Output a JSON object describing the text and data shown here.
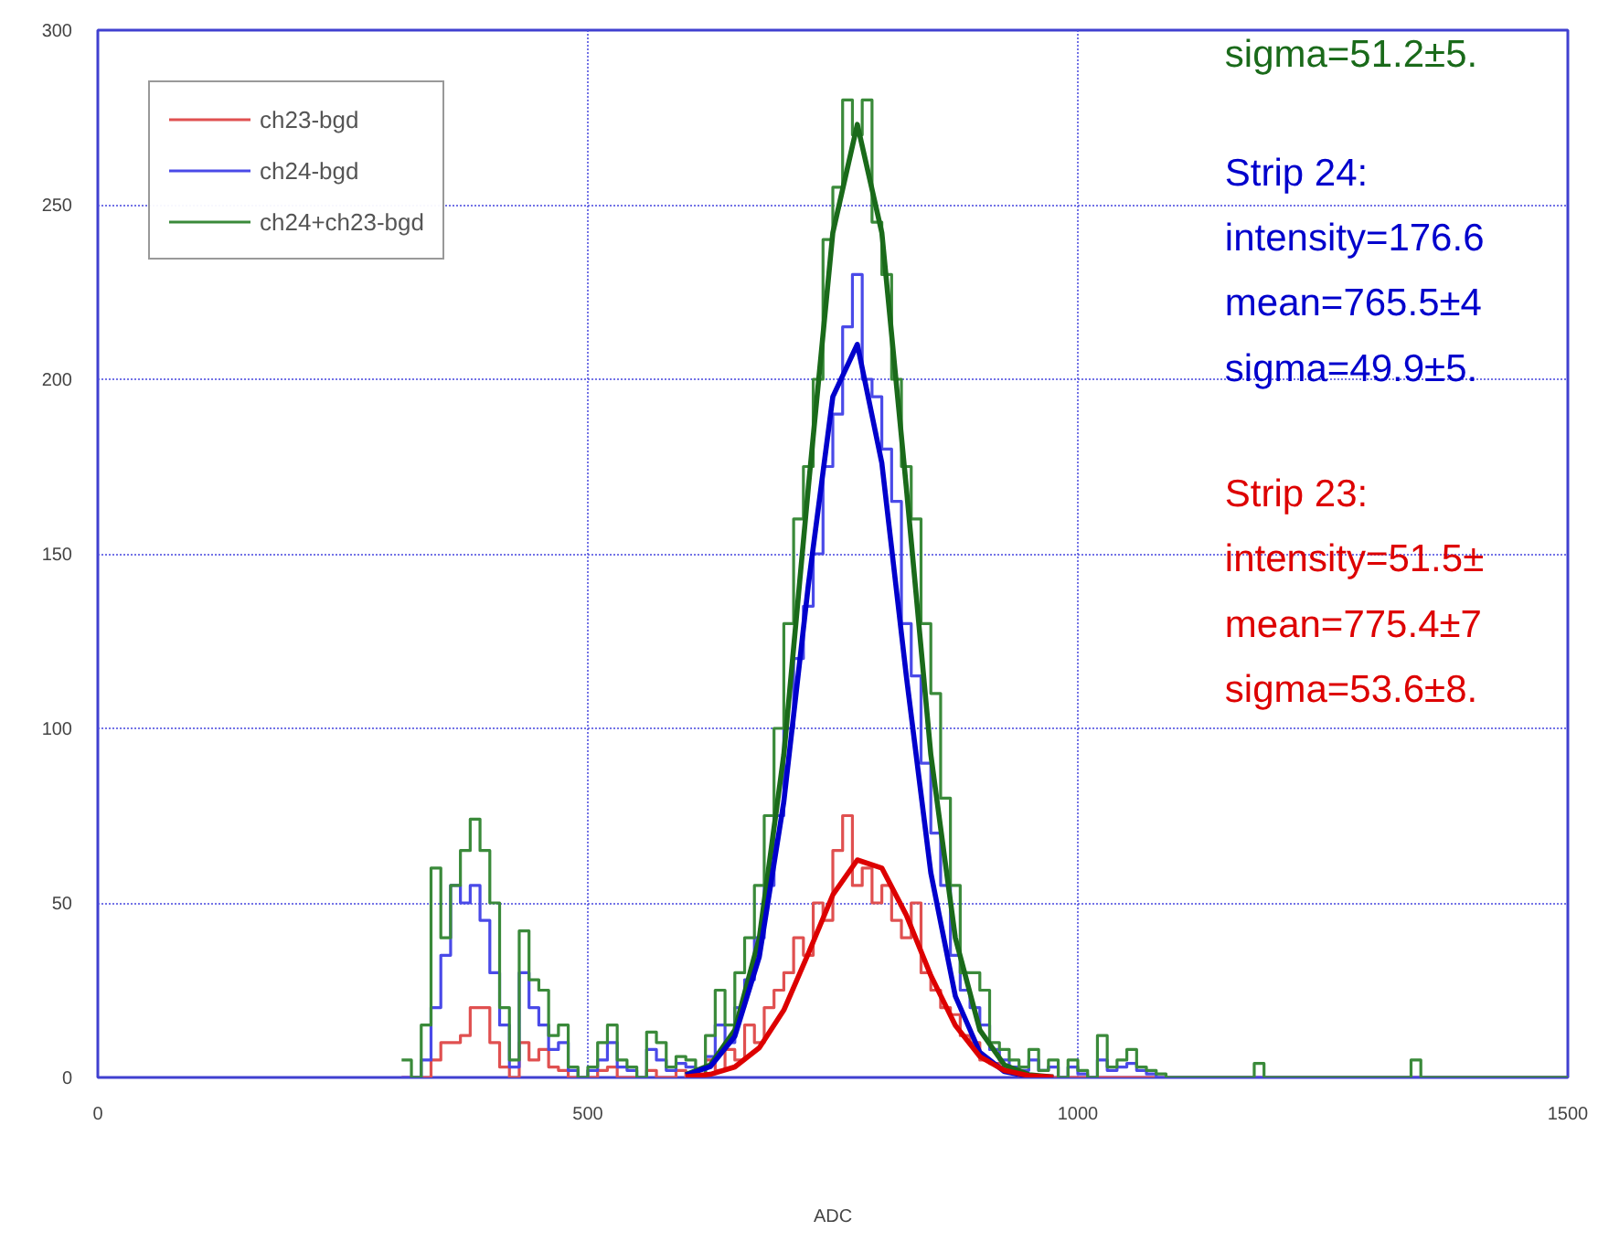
{
  "chart_data": {
    "type": "step",
    "xlabel": "ADC",
    "xlim": [
      0,
      1500
    ],
    "ylim": [
      0,
      300
    ],
    "xticks": [
      0,
      500,
      1000,
      1500
    ],
    "yticks": [
      0,
      50,
      100,
      150,
      200,
      250,
      300
    ],
    "grid": true,
    "legend": "top left",
    "series": [
      {
        "name": "ch23-bgd",
        "color": "#e05050",
        "x": [
          310,
          320,
          330,
          340,
          350,
          360,
          370,
          380,
          390,
          400,
          410,
          420,
          430,
          440,
          450,
          460,
          470,
          480,
          490,
          500,
          510,
          520,
          530,
          540,
          550,
          560,
          570,
          580,
          590,
          600,
          610,
          620,
          630,
          640,
          650,
          660,
          670,
          680,
          690,
          700,
          710,
          720,
          730,
          740,
          750,
          760,
          770,
          780,
          790,
          800,
          810,
          820,
          830,
          840,
          850,
          860,
          870,
          880,
          890,
          900,
          910,
          920,
          930,
          940,
          950,
          1500
        ],
        "values": [
          0,
          0,
          0,
          5,
          10,
          10,
          12,
          20,
          20,
          10,
          3,
          0,
          10,
          5,
          8,
          3,
          2,
          0,
          0,
          0,
          2,
          3,
          0,
          0,
          0,
          2,
          0,
          0,
          2,
          0,
          0,
          5,
          2,
          8,
          5,
          15,
          10,
          20,
          25,
          30,
          40,
          35,
          50,
          45,
          65,
          75,
          55,
          60,
          50,
          55,
          45,
          40,
          50,
          30,
          25,
          20,
          18,
          12,
          10,
          5,
          4,
          3,
          2,
          0,
          0,
          0
        ]
      },
      {
        "name": "ch24-bgd",
        "color": "#4a4ae8",
        "x": [
          310,
          320,
          330,
          340,
          350,
          360,
          370,
          380,
          390,
          400,
          410,
          420,
          430,
          440,
          450,
          460,
          470,
          480,
          490,
          500,
          510,
          520,
          530,
          540,
          550,
          560,
          570,
          580,
          590,
          600,
          610,
          620,
          630,
          640,
          650,
          660,
          670,
          680,
          690,
          700,
          710,
          720,
          730,
          740,
          750,
          760,
          770,
          780,
          790,
          800,
          810,
          820,
          830,
          840,
          850,
          860,
          870,
          880,
          890,
          900,
          910,
          920,
          930,
          940,
          950,
          960,
          970,
          980,
          990,
          1000,
          1010,
          1020,
          1030,
          1040,
          1050,
          1060,
          1070,
          1080,
          1500
        ],
        "values": [
          0,
          0,
          5,
          20,
          35,
          55,
          50,
          55,
          45,
          30,
          15,
          3,
          30,
          20,
          15,
          8,
          10,
          2,
          0,
          2,
          5,
          10,
          3,
          2,
          0,
          8,
          5,
          2,
          4,
          3,
          0,
          6,
          15,
          10,
          20,
          28,
          40,
          55,
          75,
          100,
          120,
          135,
          150,
          175,
          190,
          215,
          230,
          200,
          195,
          180,
          165,
          130,
          115,
          90,
          70,
          55,
          35,
          25,
          20,
          15,
          8,
          5,
          3,
          2,
          5,
          2,
          3,
          0,
          3,
          1,
          0,
          5,
          2,
          3,
          4,
          2,
          1,
          0,
          0
        ]
      },
      {
        "name": "ch24+ch23-bgd",
        "color": "#3a8a3a",
        "x": [
          310,
          320,
          330,
          340,
          350,
          360,
          370,
          380,
          390,
          400,
          410,
          420,
          430,
          440,
          450,
          460,
          470,
          480,
          490,
          500,
          510,
          520,
          530,
          540,
          550,
          560,
          570,
          580,
          590,
          600,
          610,
          620,
          630,
          640,
          650,
          660,
          670,
          680,
          690,
          700,
          710,
          720,
          730,
          740,
          750,
          760,
          770,
          780,
          790,
          800,
          810,
          820,
          830,
          840,
          850,
          860,
          870,
          880,
          890,
          900,
          910,
          920,
          930,
          940,
          950,
          960,
          970,
          980,
          990,
          1000,
          1010,
          1020,
          1030,
          1040,
          1050,
          1060,
          1070,
          1080,
          1090,
          1180,
          1190,
          1340,
          1350,
          1500
        ],
        "values": [
          5,
          0,
          15,
          60,
          40,
          55,
          65,
          74,
          65,
          50,
          20,
          5,
          42,
          28,
          25,
          12,
          15,
          3,
          0,
          3,
          10,
          15,
          5,
          3,
          0,
          13,
          10,
          3,
          6,
          5,
          0,
          12,
          25,
          15,
          30,
          40,
          55,
          75,
          100,
          130,
          160,
          175,
          200,
          240,
          255,
          280,
          270,
          280,
          245,
          230,
          200,
          175,
          160,
          130,
          110,
          80,
          55,
          30,
          30,
          25,
          10,
          8,
          5,
          3,
          8,
          2,
          5,
          0,
          5,
          2,
          0,
          12,
          3,
          5,
          8,
          3,
          2,
          1,
          0,
          4,
          0,
          5,
          0,
          0
        ]
      },
      {
        "type": "line",
        "color": "#1a6a1a",
        "x": [
          600,
          625,
          650,
          675,
          700,
          725,
          750,
          775,
          800,
          825,
          850,
          875,
          900,
          925,
          950,
          975
        ],
        "values": [
          0.8,
          3.6,
          13.6,
          40,
          92.5,
          169,
          242,
          273,
          242,
          169,
          92.5,
          40,
          13.6,
          3.6,
          0.8,
          0.1
        ]
      },
      {
        "type": "line",
        "color": "#0000cc",
        "x": [
          600,
          625,
          650,
          675,
          700,
          725,
          750,
          775,
          800,
          825,
          850,
          875,
          900,
          925,
          950,
          975
        ],
        "values": [
          0.7,
          3.1,
          11.8,
          34.6,
          79,
          141,
          195,
          210,
          176,
          115,
          58.6,
          23.3,
          7.2,
          1.7,
          0.3,
          0
        ]
      },
      {
        "type": "line",
        "color": "#dd0000",
        "x": [
          600,
          625,
          650,
          675,
          700,
          725,
          750,
          775,
          800,
          825,
          850,
          875,
          900,
          925,
          950,
          975
        ],
        "values": [
          0.2,
          0.9,
          3,
          8.5,
          19.3,
          35.5,
          52.3,
          62.3,
          60,
          46.5,
          29.2,
          14.9,
          6,
          2,
          0.5,
          0.1
        ]
      }
    ],
    "annotations": [
      "sigma=51.2±5.",
      "Strip 24:\nintensity=176.6\nmean=765.5±4\nsigma=49.9±5.",
      "Strip 23:\nintensity=51.5±\nmean=775.4±7\nsigma=53.6±8."
    ]
  }
}
